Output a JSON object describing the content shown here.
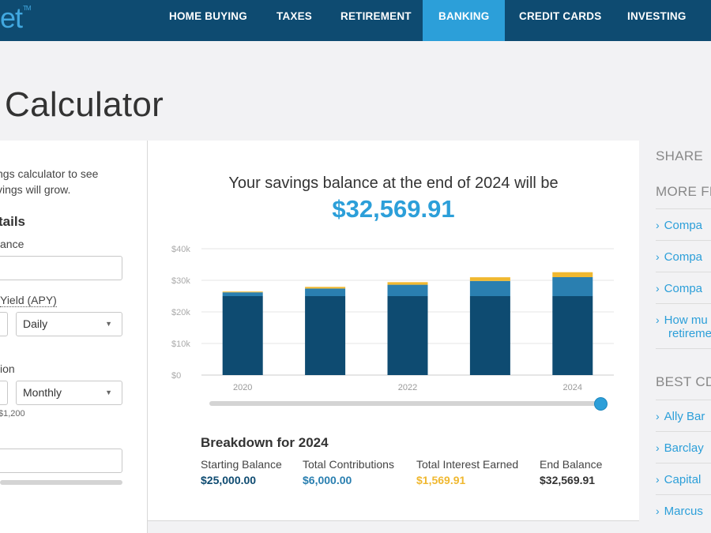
{
  "header": {
    "logo_text": "et",
    "logo_tm": "TM",
    "nav": [
      {
        "label": "HOME BUYING",
        "active": false
      },
      {
        "label": "TAXES",
        "active": false
      },
      {
        "label": "RETIREMENT",
        "active": false
      },
      {
        "label": "BANKING",
        "active": true
      },
      {
        "label": "CREDIT CARDS",
        "active": false
      },
      {
        "label": "INVESTING",
        "active": false
      }
    ]
  },
  "page": {
    "title": "Calculator"
  },
  "inputs": {
    "intro_line1": "ngs calculator to see",
    "intro_line2": "vings will grow.",
    "section_heading": "tails",
    "balance_label": "ance",
    "balance_value": "",
    "apy_label": "Yield (APY)",
    "compounding_value": "Daily",
    "contribution_label": "ion",
    "contribution_frequency": "Monthly",
    "contribution_hint": "$1,200",
    "years_value": ""
  },
  "results": {
    "heading": "Your savings balance at the end of 2024 will be",
    "end_value": "$32,569.91",
    "breakdown_title": "Breakdown for 2024",
    "breakdown": [
      {
        "label": "Starting Balance",
        "value": "$25,000.00",
        "color": "#0e4b71"
      },
      {
        "label": "Total Contributions",
        "value": "$6,000.00",
        "color": "#2a7fb0"
      },
      {
        "label": "Total Interest Earned",
        "value": "$1,569.91",
        "color": "#f0b830"
      },
      {
        "label": "End Balance",
        "value": "$32,569.91",
        "color": "#333333"
      }
    ],
    "selected_year_fraction": 1.0
  },
  "chart_data": {
    "type": "bar",
    "stacked": true,
    "categories": [
      "2020",
      "2021",
      "2022",
      "2023",
      "2024"
    ],
    "x_tick_labels": [
      "2020",
      "",
      "2022",
      "",
      "2024"
    ],
    "series": [
      {
        "name": "Starting Balance",
        "color": "#0e4b71",
        "values": [
          25000,
          25000,
          25000,
          25000,
          25000
        ]
      },
      {
        "name": "Total Contributions",
        "color": "#2a7fb0",
        "values": [
          1200,
          2400,
          3600,
          4800,
          6000
        ]
      },
      {
        "name": "Total Interest Earned",
        "color": "#f0b830",
        "values": [
          250,
          520,
          820,
          1170,
          1570
        ]
      }
    ],
    "y_ticks": [
      "$0",
      "$10k",
      "$20k",
      "$30k",
      "$40k"
    ],
    "ylim": [
      0,
      40000
    ],
    "grid": true,
    "legend": "none"
  },
  "sidebar": {
    "share_label": "SHARE",
    "more_heading": "MORE FR",
    "more_items": [
      {
        "line1": "Compa",
        "line2": ""
      },
      {
        "line1": "Compa",
        "line2": ""
      },
      {
        "line1": "Compa",
        "line2": ""
      },
      {
        "line1": "How mu",
        "line2": "retireme"
      }
    ],
    "best_heading": "BEST CD",
    "best_items": [
      {
        "line1": "Ally Bar"
      },
      {
        "line1": "Barclay"
      },
      {
        "line1": "Capital"
      },
      {
        "line1": "Marcus"
      }
    ]
  },
  "colors": {
    "nav_bg": "#0e4b71",
    "accent": "#2c9fd9",
    "interest": "#f0b830"
  }
}
